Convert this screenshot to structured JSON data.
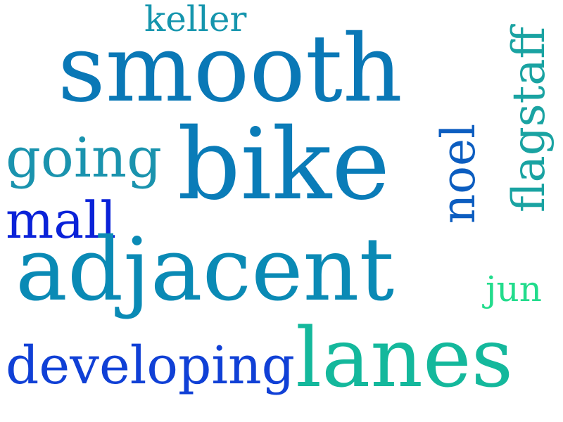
{
  "words": [
    {
      "text": "keller",
      "color": "#1595ad"
    },
    {
      "text": "smooth",
      "color": "#0a78b6"
    },
    {
      "text": "going",
      "color": "#1a93ae"
    },
    {
      "text": "bike",
      "color": "#0a7cb8"
    },
    {
      "text": "noel",
      "color": "#0c5dc0"
    },
    {
      "text": "flagstaff",
      "color": "#1aa3a2"
    },
    {
      "text": "mall",
      "color": "#0a22d8"
    },
    {
      "text": "adjacent",
      "color": "#0a8ab5"
    },
    {
      "text": "jun",
      "color": "#22dc8c"
    },
    {
      "text": "developing",
      "color": "#1040d6"
    },
    {
      "text": "lanes",
      "color": "#14b89c"
    }
  ]
}
